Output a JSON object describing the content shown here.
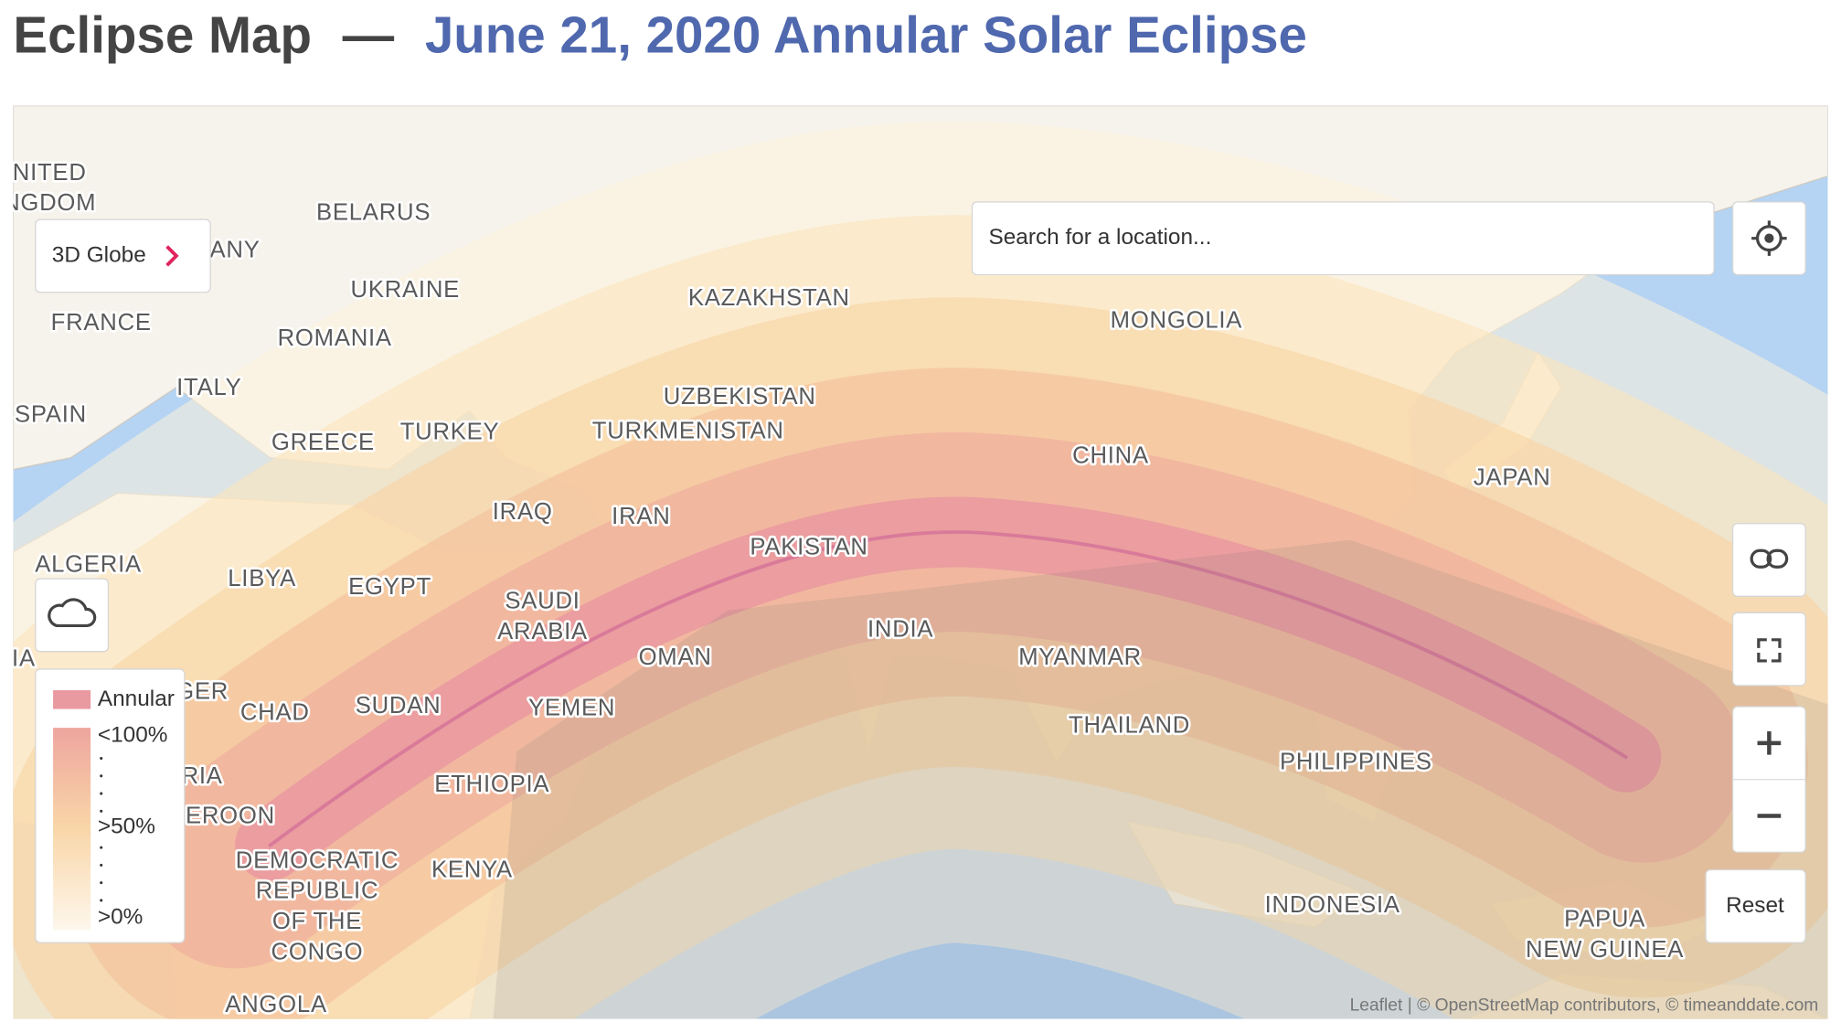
{
  "header": {
    "title": "Eclipse Map",
    "separator": "—",
    "eclipse": "June 21, 2020 Annular Solar Eclipse"
  },
  "controls": {
    "globe": "3D Globe",
    "search_placeholder": "Search for a location...",
    "reset": "Reset"
  },
  "legend": {
    "annular": "Annular",
    "high": "<100%",
    "mid": ">50%",
    "low": ">0%"
  },
  "map": {
    "labels": [
      [
        "NITED",
        "NGDOM"
      ],
      [
        "ANY"
      ],
      [
        "BELARUS"
      ],
      [
        "UKRAINE"
      ],
      [
        "FRANCE"
      ],
      [
        "ROMANIA"
      ],
      [
        "ITALY"
      ],
      [
        "SPAIN"
      ],
      [
        "GREECE"
      ],
      [
        "TURKEY"
      ],
      [
        "KAZAKHSTAN"
      ],
      [
        "MONGOLIA"
      ],
      [
        "UZBEKISTAN"
      ],
      [
        "TURKMENISTAN"
      ],
      [
        "CHINA"
      ],
      [
        "JAPAN"
      ],
      [
        "IRAQ"
      ],
      [
        "IRAN"
      ],
      [
        "PAKISTAN"
      ],
      [
        "ALGERIA"
      ],
      [
        "LIBYA"
      ],
      [
        "EGYPT"
      ],
      [
        "SAUDI",
        "ARABIA"
      ],
      [
        "INDIA"
      ],
      [
        "OMAN"
      ],
      [
        "MYANMAR"
      ],
      [
        "IA"
      ],
      [
        "GER"
      ],
      [
        "CHAD"
      ],
      [
        "SUDAN"
      ],
      [
        "YEMEN"
      ],
      [
        "THAILAND"
      ],
      [
        "PHILIPPINES"
      ],
      [
        "RIA"
      ],
      [
        "EROON"
      ],
      [
        "ETHIOPIA"
      ],
      [
        "DEMOCRATIC",
        "REPUBLIC",
        "OF THE",
        "CONGO"
      ],
      [
        "KENYA"
      ],
      [
        "INDONESIA"
      ],
      [
        "PAPUA",
        "NEW GUINEA"
      ],
      [
        "ANGOLA"
      ]
    ],
    "attribution": "Leaflet | © OpenStreetMap contributors, © timeanddate.com"
  }
}
